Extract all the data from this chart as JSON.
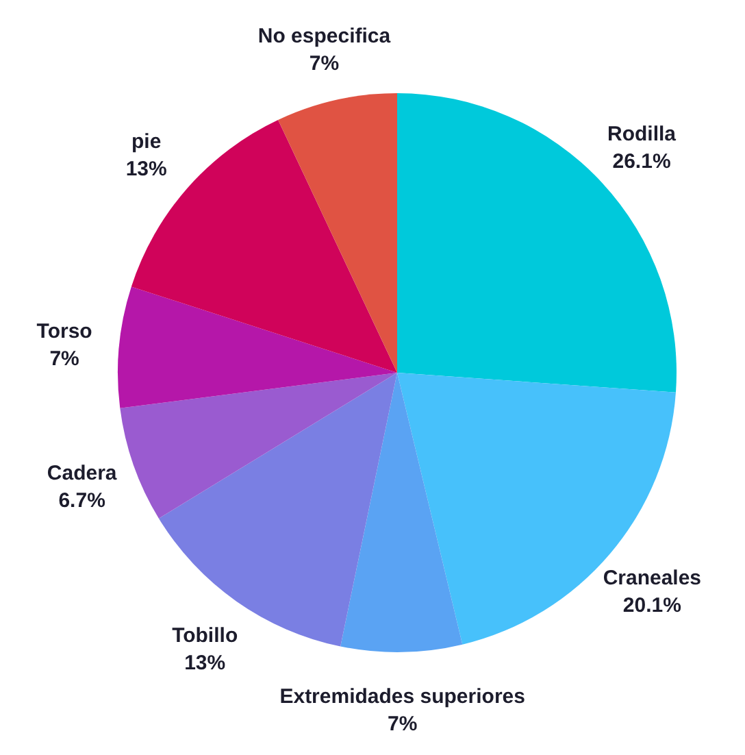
{
  "chart_data": {
    "type": "pie",
    "categories": [
      "Rodilla",
      "Craneales",
      "Extremidades superiores",
      "Tobillo",
      "Cadera",
      "Torso",
      "pie",
      "No especifica"
    ],
    "values": [
      26.1,
      20.1,
      7,
      13,
      6.7,
      7,
      13,
      7
    ],
    "value_labels": [
      "26.1%",
      "20.1%",
      "7%",
      "13%",
      "6.7%",
      "7%",
      "13%",
      "7%"
    ],
    "colors": [
      "#00c9db",
      "#47c1fb",
      "#5aa3f3",
      "#7a7fe3",
      "#9a5bd0",
      "#b517a9",
      "#d0035a",
      "#e05343"
    ]
  }
}
